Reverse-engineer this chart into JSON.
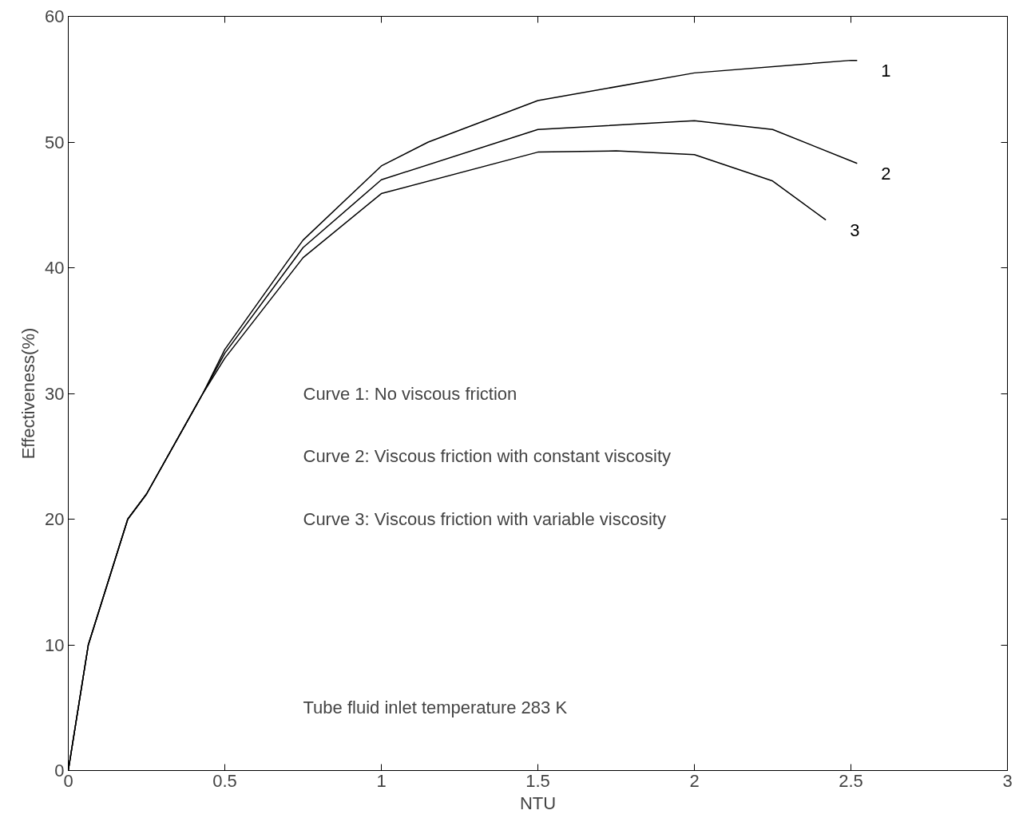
{
  "chart_data": {
    "type": "line",
    "xlabel": "NTU",
    "ylabel": "Effectiveness(%)",
    "xlim": [
      0,
      3
    ],
    "ylim": [
      0,
      60
    ],
    "xticks": [
      0,
      0.5,
      1,
      1.5,
      2,
      2.5,
      3
    ],
    "yticks": [
      0,
      10,
      20,
      30,
      40,
      50,
      60
    ],
    "grid": false,
    "line_style": "solid",
    "marker": "none",
    "series": [
      {
        "name": "1",
        "color": "#000000",
        "x": [
          0,
          0.064,
          0.19,
          0.25,
          0.43,
          0.5,
          0.7,
          0.75,
          1,
          1.15,
          1.5,
          2,
          2.5,
          2.52
        ],
        "values": [
          0,
          10,
          20,
          22,
          30,
          33.5,
          40.5,
          42.2,
          48.1,
          50,
          53.3,
          55.5,
          56.5,
          56.5
        ]
      },
      {
        "name": "2",
        "color": "#000000",
        "x": [
          0,
          0.064,
          0.19,
          0.25,
          0.43,
          0.5,
          0.75,
          1,
          1.5,
          2,
          2.25,
          2.52
        ],
        "values": [
          0,
          10,
          20,
          22,
          30,
          33.2,
          41.6,
          47,
          51,
          51.7,
          51,
          48.3
        ]
      },
      {
        "name": "3",
        "color": "#000000",
        "x": [
          0,
          0.064,
          0.19,
          0.25,
          0.43,
          0.5,
          0.75,
          1,
          1.5,
          1.75,
          2,
          2.25,
          2.42
        ],
        "values": [
          0,
          10,
          20,
          22,
          30,
          32.8,
          40.8,
          45.9,
          49.2,
          49.3,
          49,
          46.9,
          43.8
        ]
      }
    ],
    "annotations": [
      "Curve 1: No viscous friction",
      "Curve 2: Viscous friction with constant viscosity",
      "Curve 3: Viscous friction with variable viscosity",
      "Tube fluid inlet temperature 283 K"
    ]
  }
}
